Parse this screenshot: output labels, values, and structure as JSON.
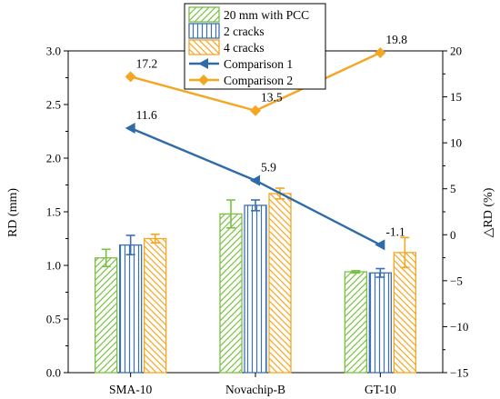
{
  "chart_data": {
    "type": "bar",
    "categories": [
      "SMA-10",
      "Novachip-B",
      "GT-10"
    ],
    "series": [
      {
        "name": "20 mm with PCC",
        "kind": "bar",
        "axis": "left",
        "color": "#7ac143",
        "hatch": "diagonal-forward",
        "values": [
          1.07,
          1.48,
          0.94
        ],
        "errors": [
          0.08,
          0.13,
          0.01
        ]
      },
      {
        "name": "2 cracks",
        "kind": "bar",
        "axis": "left",
        "color": "#3b6fb6",
        "hatch": "vertical",
        "values": [
          1.19,
          1.56,
          0.93
        ],
        "errors": [
          0.09,
          0.05,
          0.04
        ]
      },
      {
        "name": "4 cracks",
        "kind": "bar",
        "axis": "left",
        "color": "#f5a623",
        "hatch": "diagonal-back",
        "values": [
          1.25,
          1.67,
          1.12
        ],
        "errors": [
          0.04,
          0.05,
          0.14
        ]
      },
      {
        "name": "Comparison 1",
        "kind": "line",
        "axis": "right",
        "color": "#2e6ba8",
        "marker": "triangle-left",
        "values": [
          11.6,
          5.9,
          -1.1
        ],
        "labels": [
          "11.6",
          "5.9",
          "-1.1"
        ]
      },
      {
        "name": "Comparison 2",
        "kind": "line",
        "axis": "right",
        "color": "#f5a623",
        "marker": "diamond",
        "values": [
          17.2,
          13.5,
          19.8
        ],
        "labels": [
          "17.2",
          "13.5",
          "19.8"
        ]
      }
    ],
    "ylabel": "RD (mm)",
    "y2label": "△RD (%)",
    "ylim": [
      0,
      3.0
    ],
    "y2lim": [
      -15,
      20
    ],
    "yticks": [
      "0.0",
      "0.5",
      "1.0",
      "1.5",
      "2.0",
      "2.5",
      "3.0"
    ],
    "y2ticks": [
      "−15",
      "−10",
      "−5",
      "0",
      "5",
      "10",
      "15",
      "20"
    ],
    "grid": false,
    "legend_position": "top-center"
  }
}
